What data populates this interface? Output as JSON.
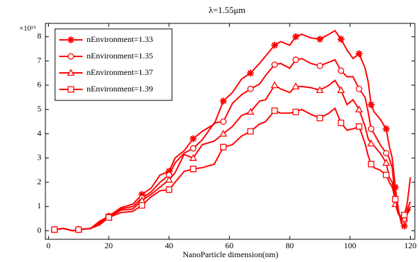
{
  "chart_data": {
    "type": "line",
    "title": "λ=1.55μm",
    "x_label": "NanoParticle dimension(nm)",
    "y_multiplier": "×10¹³",
    "x": [
      2,
      5,
      8,
      10,
      14,
      17,
      20,
      24,
      28,
      31,
      34,
      37,
      40,
      42,
      45,
      48,
      51,
      55,
      58,
      61,
      64,
      67,
      70,
      72,
      75,
      77,
      80,
      82,
      84,
      87,
      90,
      93,
      95,
      97,
      99,
      101,
      103,
      105,
      106,
      107,
      108,
      110,
      112,
      113,
      114,
      115,
      116,
      117,
      118,
      119,
      120
    ],
    "series": [
      {
        "name": "nEnvironment=1.33",
        "color": "#ff0000",
        "marker": "star",
        "values": [
          0.05,
          0.1,
          0,
          0.05,
          0.1,
          0.4,
          0.6,
          0.95,
          1.1,
          1.5,
          1.75,
          2.3,
          2.45,
          3.0,
          3.3,
          3.8,
          4.1,
          4.4,
          5.35,
          5.7,
          6.25,
          6.5,
          6.9,
          7.2,
          7.65,
          7.8,
          7.65,
          8.0,
          8.1,
          7.95,
          7.9,
          8.1,
          8.25,
          7.9,
          7.45,
          7.1,
          7.3,
          6.7,
          6.15,
          5.2,
          4.9,
          4.6,
          4.2,
          3.5,
          3.0,
          1.8,
          0.9,
          0.3,
          0.2,
          0.9,
          1.2
        ]
      },
      {
        "name": "nEnvironment=1.35",
        "color": "#ff0000",
        "marker": "circle",
        "values": [
          0.05,
          0.1,
          0,
          0.05,
          0.1,
          0.35,
          0.6,
          0.9,
          1.0,
          1.35,
          1.6,
          2.0,
          2.3,
          2.8,
          3.2,
          3.4,
          3.75,
          4.45,
          4.5,
          5.25,
          5.6,
          5.85,
          6.05,
          6.4,
          6.85,
          6.9,
          6.7,
          7.05,
          7.1,
          6.9,
          6.8,
          6.95,
          7.05,
          6.6,
          6.35,
          6.35,
          5.85,
          5.5,
          4.9,
          4.2,
          4.0,
          3.55,
          3.2,
          3.0,
          2.6,
          1.3,
          0.7,
          0.5,
          0.45,
          0.8,
          1.0
        ]
      },
      {
        "name": "nEnvironment=1.37",
        "color": "#ff0000",
        "marker": "triangle",
        "values": [
          0.05,
          0.1,
          0,
          0.05,
          0.1,
          0.3,
          0.55,
          0.85,
          0.9,
          1.25,
          1.5,
          1.8,
          2.1,
          2.4,
          3.15,
          3.0,
          3.55,
          3.7,
          4.0,
          4.3,
          4.75,
          4.9,
          5.35,
          5.4,
          6.0,
          5.85,
          5.7,
          5.95,
          5.95,
          5.9,
          5.8,
          6.0,
          6.2,
          5.8,
          5.2,
          5.4,
          5.0,
          4.3,
          3.8,
          3.6,
          3.5,
          3.2,
          2.8,
          2.2,
          2.0,
          1.1,
          0.7,
          0.6,
          0.5,
          0.7,
          0.9
        ]
      },
      {
        "name": "nEnvironment=1.39",
        "color": "#ff0000",
        "marker": "square",
        "values": [
          0.05,
          0.1,
          0,
          0.05,
          0.1,
          0.25,
          0.55,
          0.75,
          0.8,
          1.05,
          1.4,
          1.65,
          1.7,
          2.0,
          2.45,
          2.55,
          2.6,
          2.75,
          3.45,
          3.55,
          3.9,
          4.1,
          4.4,
          4.5,
          4.95,
          4.85,
          4.85,
          4.9,
          5.0,
          4.8,
          4.65,
          4.85,
          5.05,
          4.45,
          4.15,
          4.2,
          4.3,
          3.6,
          3.1,
          2.75,
          2.6,
          2.5,
          2.3,
          2.0,
          1.8,
          1.3,
          0.8,
          0.4,
          0.65,
          1.15,
          2.2
        ]
      }
    ],
    "xlim": [
      -1,
      121.5
    ],
    "ylim": [
      -0.35,
      8.55
    ],
    "xticks": [
      0,
      20,
      40,
      60,
      80,
      100,
      120
    ],
    "yticks": [
      0,
      1,
      2,
      3,
      4,
      5,
      6,
      7,
      8
    ],
    "grid": false,
    "legend": "upper left"
  }
}
